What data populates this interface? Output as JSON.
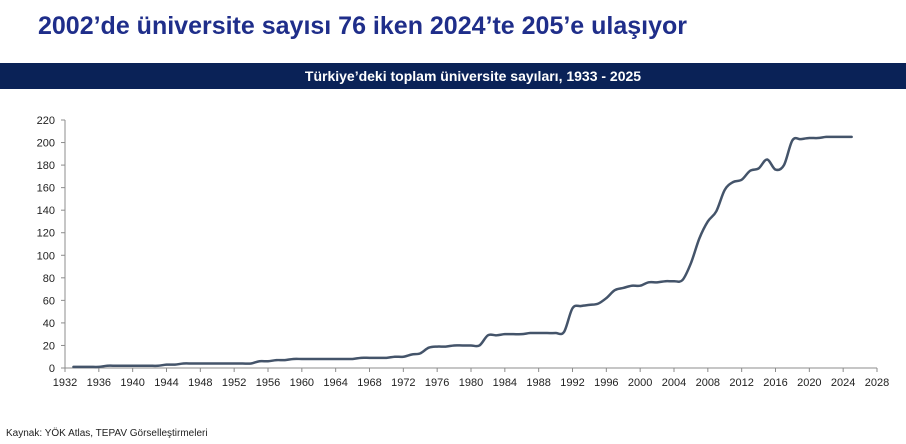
{
  "headline": "2002’de üniversite sayısı 76 iken 2024’te 205’e ulaşıyor",
  "source": "Kaynak: YÖK Atlas, TEPAV Görselleştirmeleri",
  "chart_data": {
    "type": "line",
    "title": "Türkiye’deki toplam üniversite sayıları, 1933 - 2025",
    "xlabel": "",
    "ylabel": "",
    "xlim": [
      1932,
      2028
    ],
    "ylim": [
      0,
      220
    ],
    "x_ticks": [
      1932,
      1936,
      1940,
      1944,
      1948,
      1952,
      1956,
      1960,
      1964,
      1968,
      1972,
      1976,
      1980,
      1984,
      1988,
      1992,
      1996,
      2000,
      2004,
      2008,
      2012,
      2016,
      2020,
      2024,
      2028
    ],
    "y_ticks": [
      0,
      20,
      40,
      60,
      80,
      100,
      120,
      140,
      160,
      180,
      200,
      220
    ],
    "grid": false,
    "line_color": "#44546a",
    "series": [
      {
        "x": [
          1933,
          1934,
          1935,
          1936,
          1937,
          1938,
          1939,
          1940,
          1941,
          1942,
          1943,
          1944,
          1945,
          1946,
          1947,
          1948,
          1949,
          1950,
          1951,
          1952,
          1953,
          1954,
          1955,
          1956,
          1957,
          1958,
          1959,
          1960,
          1961,
          1962,
          1963,
          1964,
          1965,
          1966,
          1967,
          1968,
          1969,
          1970,
          1971,
          1972,
          1973,
          1974,
          1975,
          1976,
          1977,
          1978,
          1979,
          1980,
          1981,
          1982,
          1983,
          1984,
          1985,
          1986,
          1987,
          1988,
          1989,
          1990,
          1991,
          1992,
          1993,
          1994,
          1995,
          1996,
          1997,
          1998,
          1999,
          2000,
          2001,
          2002,
          2003,
          2004,
          2005,
          2006,
          2007,
          2008,
          2009,
          2010,
          2011,
          2012,
          2013,
          2014,
          2015,
          2016,
          2017,
          2018,
          2019,
          2020,
          2021,
          2022,
          2023,
          2024,
          2025
        ],
        "values": [
          1,
          1,
          1,
          1,
          2,
          2,
          2,
          2,
          2,
          2,
          2,
          3,
          3,
          4,
          4,
          4,
          4,
          4,
          4,
          4,
          4,
          4,
          6,
          6,
          7,
          7,
          8,
          8,
          8,
          8,
          8,
          8,
          8,
          8,
          9,
          9,
          9,
          9,
          10,
          10,
          12,
          13,
          18,
          19,
          19,
          20,
          20,
          20,
          20,
          29,
          29,
          30,
          30,
          30,
          31,
          31,
          31,
          31,
          32,
          53,
          55,
          56,
          57,
          62,
          69,
          71,
          73,
          73,
          76,
          76,
          77,
          77,
          78,
          93,
          115,
          130,
          139,
          158,
          165,
          167,
          175,
          177,
          185,
          176,
          180,
          202,
          203,
          204,
          204,
          205,
          205,
          205,
          205
        ]
      }
    ]
  }
}
